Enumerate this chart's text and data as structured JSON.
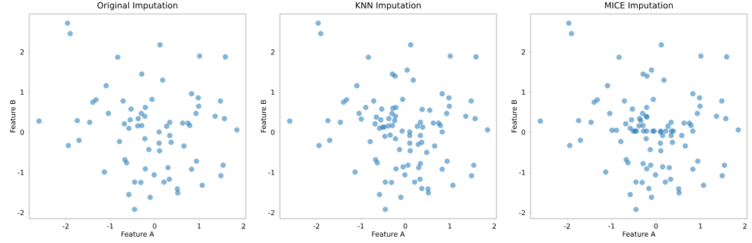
{
  "chart_data": [
    {
      "type": "scatter",
      "title": "Original Imputation",
      "xlabel": "Feature A",
      "ylabel": "Feature B",
      "color": "#1f77b4",
      "marker": "circle",
      "xlim": [
        -2.82,
        2.05
      ],
      "ylim": [
        -2.15,
        2.95
      ],
      "xticks": [
        -2,
        -1,
        0,
        1,
        2
      ],
      "yticks": [
        -2,
        -1,
        0,
        1,
        2
      ],
      "x": [
        -1.96,
        -1.9,
        0.12,
        -0.83,
        1.01,
        1.59,
        -0.29,
        0.18,
        -1.09,
        0.83,
        0.98,
        -1.32,
        -1.39,
        -0.71,
        -0.06,
        1.48,
        0.99,
        -0.53,
        -0.21,
        -1.04,
        -0.3,
        -0.22,
        0.93,
        1.36,
        -0.37,
        1.57,
        -0.55,
        -2.6,
        -1.74,
        -1.46,
        -0.68,
        0.34,
        0.63,
        0.75,
        0.79,
        -0.38,
        -0.29,
        0.27,
        -0.58,
        0.1,
        1.85,
        0.34,
        -1.7,
        -1.94,
        -0.79,
        -0.22,
        0.1,
        0.37,
        -0.13,
        0.11,
        0.66,
        -0.67,
        -0.63,
        0.94,
        1.54,
        -1.13,
        -0.21,
        0.3,
        0.83,
        -0.01,
        1.49,
        -0.45,
        -0.31,
        0.21,
        0.33,
        1.07,
        0.51,
        0.52,
        -0.58,
        -0.1,
        -0.45
      ],
      "values": [
        2.72,
        2.46,
        2.18,
        1.87,
        1.9,
        1.88,
        1.45,
        1.3,
        1.16,
        0.96,
        0.86,
        0.81,
        0.75,
        0.78,
        0.82,
        0.78,
        0.65,
        0.58,
        0.62,
        0.47,
        0.47,
        0.4,
        0.47,
        0.4,
        0.34,
        0.34,
        0.31,
        0.28,
        0.29,
        0.25,
        0.21,
        0.25,
        0.23,
        0.23,
        0.17,
        0.16,
        0.17,
        0.15,
        0.1,
        0.01,
        0.06,
        -0.08,
        -0.2,
        -0.33,
        -0.23,
        -0.16,
        -0.27,
        -0.25,
        -0.43,
        -0.46,
        -0.34,
        -0.68,
        -0.76,
        -0.72,
        -0.82,
        -0.99,
        -0.91,
        -0.88,
        -0.92,
        -1.06,
        -1.08,
        -1.24,
        -1.25,
        -1.24,
        -1.17,
        -1.32,
        -1.41,
        -1.51,
        -1.55,
        -1.62,
        -1.92
      ]
    },
    {
      "type": "scatter",
      "title": "KNN Imputation",
      "xlabel": "Feature A",
      "ylabel": "Feature B",
      "color": "#1f77b4",
      "marker": "circle",
      "xlim": [
        -2.82,
        2.05
      ],
      "ylim": [
        -2.15,
        2.95
      ],
      "xticks": [
        -2,
        -1,
        0,
        1,
        2
      ],
      "yticks": [
        -2,
        -1,
        0,
        1,
        2
      ],
      "x": [
        -1.96,
        -1.9,
        0.12,
        -0.83,
        1.01,
        1.59,
        -0.29,
        0.18,
        -1.09,
        0.83,
        0.98,
        -1.32,
        -1.39,
        -0.71,
        -0.06,
        1.48,
        0.99,
        -0.53,
        -0.21,
        -1.04,
        -0.3,
        -0.22,
        0.93,
        1.36,
        -0.37,
        1.57,
        -0.55,
        -2.6,
        -1.74,
        -1.46,
        -0.68,
        0.34,
        0.63,
        0.75,
        0.79,
        -0.38,
        -0.29,
        0.27,
        -0.58,
        0.1,
        1.85,
        0.34,
        -1.7,
        -1.94,
        -0.79,
        -0.22,
        0.1,
        0.37,
        -0.13,
        0.11,
        0.66,
        -0.67,
        -0.63,
        0.94,
        1.54,
        -1.13,
        -0.21,
        0.3,
        0.83,
        -0.01,
        1.49,
        -0.45,
        -0.31,
        0.21,
        0.33,
        1.07,
        0.51,
        0.52,
        -0.58,
        -0.1,
        -0.45,
        0.04,
        -0.23,
        -0.89,
        -0.65,
        -0.99,
        -0.28,
        0.38,
        0.55,
        -0.24,
        -0.51,
        -0.47,
        0.39,
        -0.07,
        0.1,
        0.83,
        -0.46,
        -0.34,
        0.29,
        0.48,
        0.34,
        0.06,
        -0.05,
        0.37
      ],
      "values": [
        2.72,
        2.46,
        2.18,
        1.87,
        1.9,
        1.88,
        1.45,
        1.3,
        1.16,
        0.96,
        0.86,
        0.81,
        0.75,
        0.78,
        0.82,
        0.78,
        0.65,
        0.58,
        0.62,
        0.47,
        0.47,
        0.4,
        0.47,
        0.4,
        0.34,
        0.34,
        0.31,
        0.28,
        0.29,
        0.25,
        0.21,
        0.25,
        0.23,
        0.23,
        0.17,
        0.16,
        0.17,
        0.15,
        0.1,
        0.01,
        0.06,
        -0.08,
        -0.2,
        -0.33,
        -0.23,
        -0.16,
        -0.27,
        -0.25,
        -0.43,
        -0.46,
        -0.34,
        -0.68,
        -0.76,
        -0.72,
        -0.82,
        -0.99,
        -0.91,
        -0.88,
        -0.92,
        -1.06,
        -1.08,
        -1.24,
        -1.25,
        -1.24,
        -1.17,
        -1.32,
        -1.41,
        -1.51,
        -1.55,
        -1.62,
        -1.92,
        1.55,
        1.4,
        0.62,
        0.38,
        0.33,
        0.6,
        0.57,
        0.55,
        0.29,
        0.13,
        0.13,
        0.13,
        0.03,
        -0.08,
        0.01,
        -0.1,
        -0.07,
        -0.3,
        -0.5,
        -0.78,
        -0.82,
        -0.86,
        -1.4
      ]
    },
    {
      "type": "scatter",
      "title": "MICE Imputation",
      "xlabel": "Feature A",
      "ylabel": "Feature B",
      "color": "#1f77b4",
      "marker": "circle",
      "xlim": [
        -2.82,
        2.05
      ],
      "ylim": [
        -2.15,
        2.95
      ],
      "xticks": [
        -2,
        -1,
        0,
        1,
        2
      ],
      "yticks": [
        -2,
        -1,
        0,
        1,
        2
      ],
      "x": [
        -1.96,
        -1.9,
        0.12,
        -0.83,
        1.01,
        1.59,
        -0.29,
        0.18,
        -1.09,
        0.83,
        0.98,
        -1.32,
        -1.39,
        -0.71,
        -0.06,
        1.48,
        0.99,
        -0.53,
        -0.21,
        -1.04,
        -0.3,
        -0.22,
        0.93,
        1.36,
        -0.37,
        1.57,
        -0.55,
        -2.6,
        -1.74,
        -1.46,
        -0.68,
        0.34,
        0.63,
        0.75,
        0.79,
        -0.38,
        -0.29,
        0.27,
        -0.58,
        0.1,
        1.85,
        0.34,
        -1.7,
        -1.94,
        -0.79,
        -0.22,
        0.1,
        0.37,
        -0.13,
        0.11,
        0.66,
        -0.67,
        -0.63,
        0.94,
        1.54,
        -1.13,
        -0.21,
        0.3,
        0.83,
        -0.01,
        1.49,
        -0.45,
        -0.31,
        0.21,
        0.33,
        1.07,
        0.51,
        0.52,
        -0.58,
        -0.1,
        -0.45,
        -0.1,
        -0.2,
        -0.99,
        -0.89,
        -0.51,
        -0.47,
        -0.44,
        -0.28,
        -0.21,
        -0.07,
        -0.04,
        0.11,
        0.22,
        0.35,
        0.39,
        0.83,
        -0.34,
        -0.2,
        0.15,
        0.58,
        -0.29,
        -0.12,
        0.15,
        -0.16
      ],
      "values": [
        2.72,
        2.46,
        2.18,
        1.87,
        1.9,
        1.88,
        1.45,
        1.3,
        1.16,
        0.96,
        0.86,
        0.81,
        0.75,
        0.78,
        0.82,
        0.78,
        0.65,
        0.58,
        0.62,
        0.47,
        0.47,
        0.4,
        0.47,
        0.4,
        0.34,
        0.34,
        0.31,
        0.28,
        0.29,
        0.25,
        0.21,
        0.25,
        0.23,
        0.23,
        0.17,
        0.16,
        0.17,
        0.15,
        0.1,
        0.01,
        0.06,
        -0.08,
        -0.2,
        -0.33,
        -0.23,
        -0.16,
        -0.27,
        -0.25,
        -0.43,
        -0.46,
        -0.34,
        -0.68,
        -0.76,
        -0.72,
        -0.82,
        -0.99,
        -0.91,
        -0.88,
        -0.92,
        -1.06,
        -1.08,
        -1.24,
        -1.25,
        -1.24,
        -1.17,
        -1.32,
        -1.41,
        -1.51,
        -1.55,
        -1.62,
        -1.92,
        1.55,
        1.4,
        0.05,
        0.05,
        0.03,
        0.03,
        0.03,
        0.03,
        0.03,
        0.03,
        0.03,
        0.03,
        0.03,
        0.03,
        0.03,
        0.03,
        0.29,
        0.38,
        -0.08,
        -0.08,
        -0.78,
        -0.82,
        -0.86,
        -1.4
      ]
    }
  ]
}
